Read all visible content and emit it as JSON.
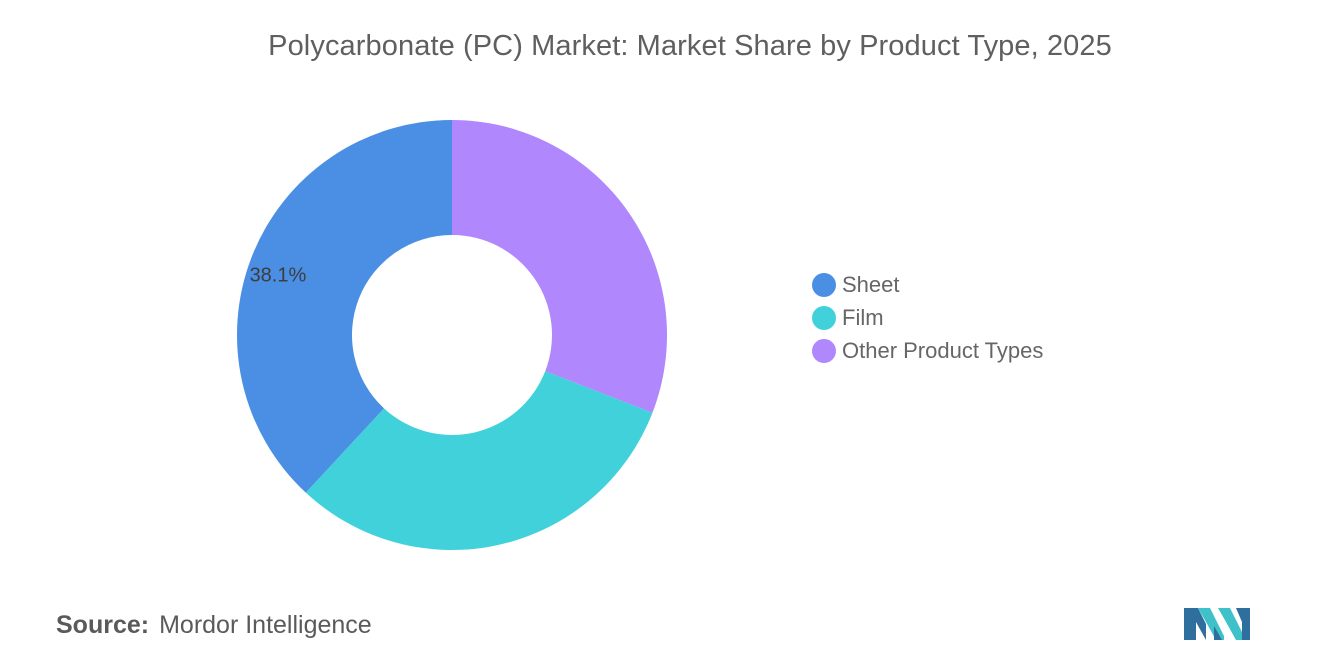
{
  "title": "Polycarbonate (PC) Market: Market Share by Product Type, 2025",
  "chart_data": {
    "type": "pie",
    "variant": "donut",
    "title": "Polycarbonate (PC) Market: Market Share by Product Type, 2025",
    "series": [
      {
        "name": "Sheet",
        "value": 38.1,
        "color": "#4a8fe4",
        "data_label": "38.1%"
      },
      {
        "name": "Film",
        "value": 31.0,
        "color": "#40d1da",
        "data_label": ""
      },
      {
        "name": "Other Product Types",
        "value": 30.9,
        "color": "#b087fd",
        "data_label": ""
      }
    ],
    "legend_placement": "right"
  },
  "legend": {
    "items": [
      {
        "label": "Sheet",
        "color": "#4a8fe4"
      },
      {
        "label": "Film",
        "color": "#40d1da"
      },
      {
        "label": "Other Product Types",
        "color": "#b087fd"
      }
    ]
  },
  "source": {
    "key": "Source:",
    "value": "Mordor Intelligence"
  },
  "logo": {
    "icon": "mordor-intelligence-logo",
    "colors": [
      "#2f6f9e",
      "#3fc1c9"
    ]
  }
}
